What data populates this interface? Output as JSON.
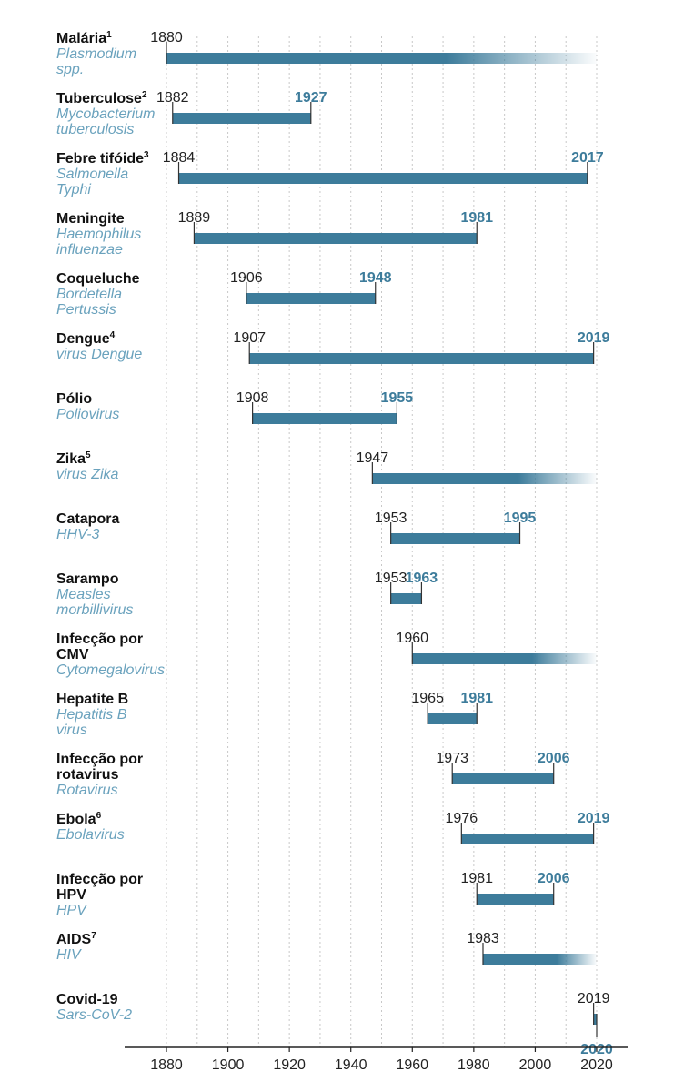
{
  "chart_data": {
    "type": "bar",
    "orientation": "horizontal-range",
    "xlim": [
      1880,
      2020
    ],
    "xticks": [
      1880,
      1900,
      1920,
      1940,
      1960,
      1980,
      2000,
      2020
    ],
    "grid": true,
    "colors": {
      "bar": "#3d7c9b",
      "ongoing_fade": "#ffffff",
      "name": "#111111",
      "scientific": "#6aa2bd",
      "end_label": "#3d7c9b",
      "grid": "#c8c8c8"
    },
    "rows": [
      {
        "name": [
          "Malária"
        ],
        "sup": "1",
        "sci": [
          "Plasmodium",
          "spp."
        ],
        "start": 1880,
        "end_label": "",
        "ongoing": true
      },
      {
        "name": [
          "Tuberculose"
        ],
        "sup": "2",
        "sci": [
          "Mycobacterium",
          "tuberculosis"
        ],
        "start": 1882,
        "end": 1927,
        "end_label": "1927",
        "ongoing": false
      },
      {
        "name": [
          "Febre tifóide"
        ],
        "sup": "3",
        "sci": [
          "Salmonella",
          "Typhi"
        ],
        "start": 1884,
        "end": 2017,
        "end_label": "2017",
        "ongoing": false
      },
      {
        "name": [
          "Meningite"
        ],
        "sup": "",
        "sci": [
          "Haemophilus",
          "influenzae"
        ],
        "start": 1889,
        "end": 1981,
        "end_label": "1981",
        "ongoing": false
      },
      {
        "name": [
          "Coqueluche"
        ],
        "sup": "",
        "sci": [
          "Bordetella",
          "Pertussis"
        ],
        "start": 1906,
        "end": 1948,
        "end_label": "1948",
        "ongoing": false
      },
      {
        "name": [
          "Dengue"
        ],
        "sup": "4",
        "sci": [
          "virus Dengue"
        ],
        "start": 1907,
        "end": 2019,
        "end_label": "2019",
        "ongoing": false
      },
      {
        "name": [
          "Pólio"
        ],
        "sup": "",
        "sci": [
          "Poliovirus"
        ],
        "start": 1908,
        "end": 1955,
        "end_label": "1955",
        "ongoing": false
      },
      {
        "name": [
          "Zika"
        ],
        "sup": "5",
        "sci": [
          "virus Zika"
        ],
        "start": 1947,
        "end_label": "",
        "ongoing": true
      },
      {
        "name": [
          "Catapora"
        ],
        "sup": "",
        "sci": [
          "HHV-3"
        ],
        "start": 1953,
        "end": 1995,
        "end_label": "1995",
        "ongoing": false
      },
      {
        "name": [
          "Sarampo"
        ],
        "sup": "",
        "sci": [
          "Measles",
          "morbillivirus"
        ],
        "start": 1953,
        "end": 1963,
        "end_label": "1963",
        "ongoing": false
      },
      {
        "name": [
          "Infecção por",
          "CMV"
        ],
        "sup": "",
        "sci": [
          "Cytomegalovirus"
        ],
        "start": 1960,
        "end_label": "",
        "ongoing": true
      },
      {
        "name": [
          "Hepatite B"
        ],
        "sup": "",
        "sci": [
          "Hepatitis B",
          "virus"
        ],
        "start": 1965,
        "end": 1981,
        "end_label": "1981",
        "ongoing": false
      },
      {
        "name": [
          "Infecção por",
          "rotavirus"
        ],
        "sup": "",
        "sci": [
          "Rotavirus"
        ],
        "start": 1973,
        "end": 2006,
        "end_label": "2006",
        "ongoing": false
      },
      {
        "name": [
          "Ebola"
        ],
        "sup": "6",
        "sci": [
          "Ebolavirus"
        ],
        "start": 1976,
        "end": 2019,
        "end_label": "2019",
        "ongoing": false
      },
      {
        "name": [
          "Infecção por",
          "HPV"
        ],
        "sup": "",
        "sci": [
          "HPV"
        ],
        "start": 1981,
        "end": 2006,
        "end_label": "2006",
        "ongoing": false
      },
      {
        "name": [
          "AIDS"
        ],
        "sup": "7",
        "sci": [
          "HIV"
        ],
        "start": 1983,
        "end_label": "",
        "ongoing": true
      },
      {
        "name": [
          "Covid-19"
        ],
        "sup": "",
        "sci": [
          "Sars-CoV-2"
        ],
        "start": 2019,
        "end": 2020,
        "end_label": "2020",
        "end_label_below": true,
        "ongoing": false
      }
    ]
  }
}
